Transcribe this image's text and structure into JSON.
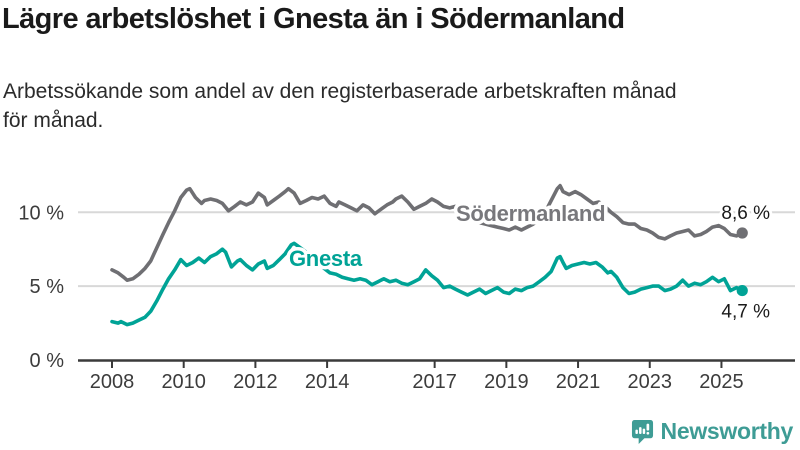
{
  "header": {
    "title": "Lägre arbetslöshet i Gnesta än i Södermanland",
    "subtitle_line1": "Arbetssökande som andel av den registerbaserade arbetskraften månad",
    "subtitle_line2": "för månad."
  },
  "footer": {
    "brand": "Newsworthy",
    "brand_color": "#3e9c95",
    "logo_icon": "speech-bubble-bar-chart-exclamation"
  },
  "chart_data": {
    "type": "line",
    "title": "Lägre arbetslöshet i Gnesta än i Södermanland",
    "subtitle": "Arbetssökande som andel av den registerbaserade arbetskraften månad för månad.",
    "xlabel": "",
    "ylabel": "",
    "grid": "horizontal",
    "legend_position": "inline-labels",
    "x_axis": {
      "ticks": [
        2008,
        2010,
        2012,
        2014,
        2017,
        2019,
        2021,
        2023,
        2025
      ],
      "range": [
        2007.05,
        2027.05
      ]
    },
    "y_axis": {
      "ticks": [
        0,
        5,
        10
      ],
      "tick_suffix": " %",
      "range": [
        0,
        13.5
      ]
    },
    "colors": {
      "sodermanland": "#6f6f73",
      "gnesta": "#00a396",
      "grid": "#d8d8d8",
      "axis": "#3a3a3a",
      "value_label": "#1a1a1a"
    },
    "series": [
      {
        "name": "Södermanland",
        "color": "#6f6f73",
        "label_color": "#78787c",
        "end_label": "8,6 %",
        "end_value": 8.6,
        "points": [
          [
            2008.0,
            6.1
          ],
          [
            2008.17,
            5.9
          ],
          [
            2008.33,
            5.6
          ],
          [
            2008.42,
            5.4
          ],
          [
            2008.58,
            5.5
          ],
          [
            2008.75,
            5.8
          ],
          [
            2008.92,
            6.2
          ],
          [
            2009.08,
            6.7
          ],
          [
            2009.25,
            7.6
          ],
          [
            2009.42,
            8.5
          ],
          [
            2009.58,
            9.3
          ],
          [
            2009.75,
            10.1
          ],
          [
            2009.92,
            11.0
          ],
          [
            2010.08,
            11.5
          ],
          [
            2010.17,
            11.6
          ],
          [
            2010.33,
            11.0
          ],
          [
            2010.5,
            10.6
          ],
          [
            2010.58,
            10.8
          ],
          [
            2010.75,
            10.9
          ],
          [
            2010.92,
            10.8
          ],
          [
            2011.08,
            10.6
          ],
          [
            2011.25,
            10.1
          ],
          [
            2011.42,
            10.4
          ],
          [
            2011.58,
            10.7
          ],
          [
            2011.75,
            10.5
          ],
          [
            2011.92,
            10.7
          ],
          [
            2012.08,
            11.3
          ],
          [
            2012.25,
            11.0
          ],
          [
            2012.33,
            10.5
          ],
          [
            2012.5,
            10.8
          ],
          [
            2012.67,
            11.1
          ],
          [
            2012.83,
            11.4
          ],
          [
            2012.92,
            11.6
          ],
          [
            2013.08,
            11.3
          ],
          [
            2013.25,
            10.6
          ],
          [
            2013.42,
            10.8
          ],
          [
            2013.58,
            11.0
          ],
          [
            2013.75,
            10.9
          ],
          [
            2013.92,
            11.1
          ],
          [
            2014.08,
            10.6
          ],
          [
            2014.25,
            10.4
          ],
          [
            2014.33,
            10.7
          ],
          [
            2014.5,
            10.5
          ],
          [
            2014.67,
            10.3
          ],
          [
            2014.83,
            10.1
          ],
          [
            2015.0,
            10.5
          ],
          [
            2015.17,
            10.3
          ],
          [
            2015.33,
            9.9
          ],
          [
            2015.5,
            10.2
          ],
          [
            2015.67,
            10.5
          ],
          [
            2015.83,
            10.7
          ],
          [
            2015.92,
            10.9
          ],
          [
            2016.08,
            11.1
          ],
          [
            2016.25,
            10.7
          ],
          [
            2016.42,
            10.2
          ],
          [
            2016.58,
            10.4
          ],
          [
            2016.75,
            10.6
          ],
          [
            2016.92,
            10.9
          ],
          [
            2017.08,
            10.7
          ],
          [
            2017.25,
            10.4
          ],
          [
            2017.42,
            10.3
          ],
          [
            2017.58,
            10.4
          ],
          [
            2017.75,
            10.2
          ],
          [
            2017.92,
            10.0
          ],
          [
            2018.08,
            9.6
          ],
          [
            2018.25,
            9.3
          ],
          [
            2018.42,
            9.2
          ],
          [
            2018.58,
            9.1
          ],
          [
            2018.75,
            9.0
          ],
          [
            2018.92,
            8.9
          ],
          [
            2019.08,
            8.8
          ],
          [
            2019.25,
            9.0
          ],
          [
            2019.42,
            8.8
          ],
          [
            2019.58,
            9.0
          ],
          [
            2019.75,
            9.2
          ],
          [
            2019.92,
            9.5
          ],
          [
            2020.08,
            10.0
          ],
          [
            2020.25,
            10.8
          ],
          [
            2020.42,
            11.6
          ],
          [
            2020.5,
            11.8
          ],
          [
            2020.58,
            11.4
          ],
          [
            2020.75,
            11.2
          ],
          [
            2020.92,
            11.4
          ],
          [
            2021.08,
            11.2
          ],
          [
            2021.25,
            10.9
          ],
          [
            2021.42,
            10.6
          ],
          [
            2021.58,
            10.7
          ],
          [
            2021.75,
            10.4
          ],
          [
            2021.92,
            10.0
          ],
          [
            2022.08,
            9.7
          ],
          [
            2022.25,
            9.3
          ],
          [
            2022.42,
            9.2
          ],
          [
            2022.58,
            9.2
          ],
          [
            2022.75,
            8.9
          ],
          [
            2022.92,
            8.8
          ],
          [
            2023.08,
            8.6
          ],
          [
            2023.25,
            8.3
          ],
          [
            2023.42,
            8.2
          ],
          [
            2023.58,
            8.4
          ],
          [
            2023.75,
            8.6
          ],
          [
            2023.92,
            8.7
          ],
          [
            2024.08,
            8.8
          ],
          [
            2024.25,
            8.4
          ],
          [
            2024.42,
            8.5
          ],
          [
            2024.58,
            8.7
          ],
          [
            2024.75,
            9.0
          ],
          [
            2024.92,
            9.1
          ],
          [
            2025.08,
            8.9
          ],
          [
            2025.25,
            8.5
          ],
          [
            2025.42,
            8.4
          ],
          [
            2025.58,
            8.6
          ]
        ]
      },
      {
        "name": "Gnesta",
        "color": "#00a396",
        "label_color": "#00a396",
        "end_label": "4,7 %",
        "end_value": 4.7,
        "points": [
          [
            2008.0,
            2.6
          ],
          [
            2008.17,
            2.5
          ],
          [
            2008.25,
            2.6
          ],
          [
            2008.42,
            2.4
          ],
          [
            2008.58,
            2.5
          ],
          [
            2008.75,
            2.7
          ],
          [
            2008.92,
            2.9
          ],
          [
            2009.08,
            3.3
          ],
          [
            2009.25,
            4.0
          ],
          [
            2009.42,
            4.8
          ],
          [
            2009.58,
            5.5
          ],
          [
            2009.75,
            6.1
          ],
          [
            2009.92,
            6.8
          ],
          [
            2010.08,
            6.4
          ],
          [
            2010.25,
            6.6
          ],
          [
            2010.42,
            6.9
          ],
          [
            2010.58,
            6.6
          ],
          [
            2010.75,
            7.0
          ],
          [
            2010.92,
            7.2
          ],
          [
            2011.08,
            7.5
          ],
          [
            2011.17,
            7.3
          ],
          [
            2011.33,
            6.3
          ],
          [
            2011.5,
            6.7
          ],
          [
            2011.58,
            6.8
          ],
          [
            2011.75,
            6.4
          ],
          [
            2011.92,
            6.1
          ],
          [
            2012.08,
            6.5
          ],
          [
            2012.25,
            6.7
          ],
          [
            2012.33,
            6.2
          ],
          [
            2012.5,
            6.4
          ],
          [
            2012.67,
            6.8
          ],
          [
            2012.83,
            7.2
          ],
          [
            2013.0,
            7.8
          ],
          [
            2013.08,
            7.9
          ],
          [
            2013.25,
            7.6
          ],
          [
            2013.42,
            7.3
          ],
          [
            2013.58,
            7.0
          ],
          [
            2013.75,
            6.6
          ],
          [
            2013.92,
            6.2
          ],
          [
            2014.08,
            5.9
          ],
          [
            2014.25,
            5.8
          ],
          [
            2014.42,
            5.6
          ],
          [
            2014.58,
            5.5
          ],
          [
            2014.75,
            5.4
          ],
          [
            2014.92,
            5.5
          ],
          [
            2015.08,
            5.4
          ],
          [
            2015.25,
            5.1
          ],
          [
            2015.42,
            5.3
          ],
          [
            2015.58,
            5.5
          ],
          [
            2015.75,
            5.3
          ],
          [
            2015.92,
            5.4
          ],
          [
            2016.08,
            5.2
          ],
          [
            2016.25,
            5.1
          ],
          [
            2016.42,
            5.3
          ],
          [
            2016.58,
            5.5
          ],
          [
            2016.75,
            6.1
          ],
          [
            2016.92,
            5.7
          ],
          [
            2017.08,
            5.4
          ],
          [
            2017.25,
            4.9
          ],
          [
            2017.42,
            5.0
          ],
          [
            2017.58,
            4.8
          ],
          [
            2017.75,
            4.6
          ],
          [
            2017.92,
            4.4
          ],
          [
            2018.08,
            4.6
          ],
          [
            2018.25,
            4.8
          ],
          [
            2018.42,
            4.5
          ],
          [
            2018.58,
            4.7
          ],
          [
            2018.75,
            4.9
          ],
          [
            2018.92,
            4.6
          ],
          [
            2019.08,
            4.5
          ],
          [
            2019.25,
            4.8
          ],
          [
            2019.42,
            4.7
          ],
          [
            2019.58,
            4.9
          ],
          [
            2019.75,
            5.0
          ],
          [
            2019.92,
            5.3
          ],
          [
            2020.08,
            5.6
          ],
          [
            2020.25,
            6.0
          ],
          [
            2020.42,
            6.9
          ],
          [
            2020.5,
            7.0
          ],
          [
            2020.58,
            6.6
          ],
          [
            2020.67,
            6.2
          ],
          [
            2020.83,
            6.4
          ],
          [
            2021.0,
            6.5
          ],
          [
            2021.17,
            6.6
          ],
          [
            2021.33,
            6.5
          ],
          [
            2021.5,
            6.6
          ],
          [
            2021.67,
            6.3
          ],
          [
            2021.83,
            5.9
          ],
          [
            2021.92,
            6.0
          ],
          [
            2022.08,
            5.6
          ],
          [
            2022.25,
            4.9
          ],
          [
            2022.42,
            4.5
          ],
          [
            2022.58,
            4.6
          ],
          [
            2022.75,
            4.8
          ],
          [
            2022.92,
            4.9
          ],
          [
            2023.08,
            5.0
          ],
          [
            2023.25,
            5.0
          ],
          [
            2023.42,
            4.7
          ],
          [
            2023.58,
            4.8
          ],
          [
            2023.75,
            5.0
          ],
          [
            2023.92,
            5.4
          ],
          [
            2024.08,
            5.0
          ],
          [
            2024.25,
            5.2
          ],
          [
            2024.42,
            5.1
          ],
          [
            2024.58,
            5.3
          ],
          [
            2024.75,
            5.6
          ],
          [
            2024.92,
            5.3
          ],
          [
            2025.08,
            5.5
          ],
          [
            2025.25,
            4.7
          ],
          [
            2025.42,
            4.9
          ],
          [
            2025.58,
            4.7
          ]
        ]
      }
    ]
  }
}
